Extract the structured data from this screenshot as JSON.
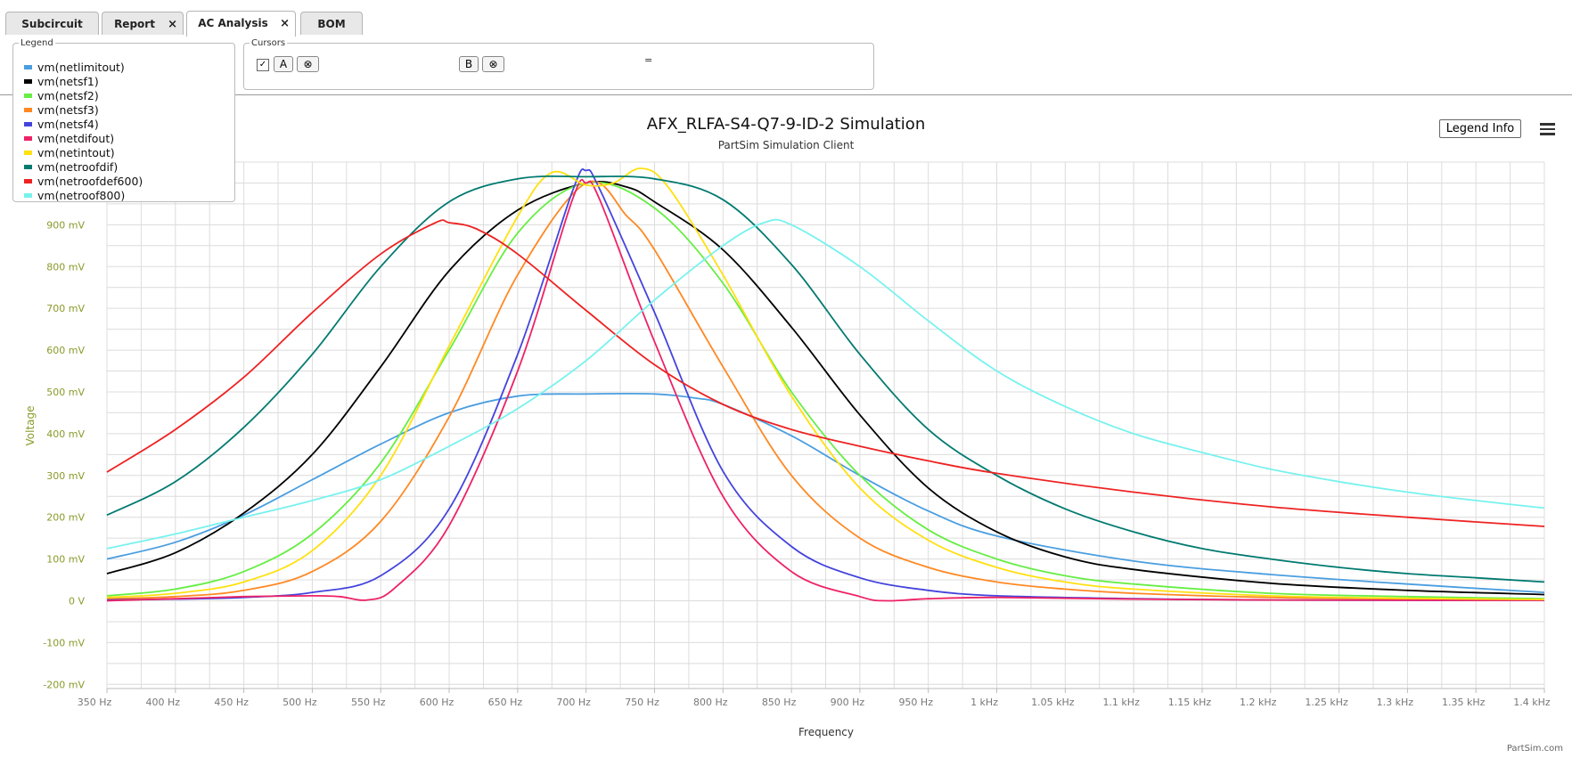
{
  "tabs": [
    {
      "label": "Subcircuit",
      "closable": false,
      "active": false
    },
    {
      "label": "Report",
      "closable": true,
      "active": false
    },
    {
      "label": "AC Analysis",
      "closable": true,
      "active": true
    },
    {
      "label": "BOM",
      "closable": false,
      "active": false
    }
  ],
  "legend_panel": {
    "label": "Legend"
  },
  "cursors_panel": {
    "label": "Cursors",
    "button_a": "A",
    "button_b": "B",
    "equals": "="
  },
  "legend_info_label": "Legend Info",
  "credit": "PartSim.com",
  "chart_data": {
    "type": "line",
    "title": "AFX_RLFA-S4-Q7-9-ID-2 Simulation",
    "subtitle": "PartSim Simulation Client",
    "xlabel": "Frequency",
    "ylabel": "Voltage",
    "xlim": [
      350,
      1400
    ],
    "ylim": [
      -210,
      1050
    ],
    "grid": true,
    "legend_placement": "top-left",
    "x_ticks": [
      350,
      400,
      450,
      500,
      550,
      600,
      650,
      700,
      750,
      800,
      850,
      900,
      950,
      1000,
      1050,
      1100,
      1150,
      1200,
      1250,
      1300,
      1350,
      1400
    ],
    "x_tick_labels": [
      "350 Hz",
      "400 Hz",
      "450 Hz",
      "500 Hz",
      "550 Hz",
      "600 Hz",
      "650 Hz",
      "700 Hz",
      "750 Hz",
      "800 Hz",
      "850 Hz",
      "900 Hz",
      "950 Hz",
      "1 kHz",
      "1.05 kHz",
      "1.1 kHz",
      "1.15 kHz",
      "1.2 kHz",
      "1.25 kHz",
      "1.3 kHz",
      "1.35 kHz",
      "1.4 kHz"
    ],
    "y_ticks": [
      -200,
      -100,
      0,
      100,
      200,
      300,
      400,
      500,
      600,
      700,
      800,
      900
    ],
    "y_tick_labels": [
      "-200 mV",
      "-100 mV",
      "0 V",
      "100 mV",
      "200 mV",
      "300 mV",
      "400 mV",
      "500 mV",
      "600 mV",
      "700 mV",
      "800 mV",
      "900 mV"
    ],
    "series": [
      {
        "name": "vm(netlimitout)",
        "color": "#4a9ee0",
        "points": [
          [
            350,
            100
          ],
          [
            400,
            140
          ],
          [
            450,
            205
          ],
          [
            500,
            290
          ],
          [
            550,
            375
          ],
          [
            600,
            450
          ],
          [
            650,
            490
          ],
          [
            700,
            495
          ],
          [
            750,
            495
          ],
          [
            780,
            485
          ],
          [
            800,
            470
          ],
          [
            850,
            395
          ],
          [
            900,
            300
          ],
          [
            950,
            215
          ],
          [
            1000,
            155
          ],
          [
            1100,
            95
          ],
          [
            1200,
            63
          ],
          [
            1300,
            40
          ],
          [
            1400,
            20
          ]
        ]
      },
      {
        "name": "vm(netsf1)",
        "color": "#000000",
        "points": [
          [
            350,
            65
          ],
          [
            400,
            115
          ],
          [
            450,
            210
          ],
          [
            500,
            350
          ],
          [
            550,
            560
          ],
          [
            600,
            790
          ],
          [
            650,
            935
          ],
          [
            700,
            1000
          ],
          [
            730,
            990
          ],
          [
            750,
            955
          ],
          [
            800,
            840
          ],
          [
            850,
            655
          ],
          [
            900,
            445
          ],
          [
            950,
            270
          ],
          [
            1000,
            165
          ],
          [
            1050,
            105
          ],
          [
            1100,
            75
          ],
          [
            1200,
            42
          ],
          [
            1300,
            25
          ],
          [
            1400,
            15
          ]
        ]
      },
      {
        "name": "vm(netsf2)",
        "color": "#66ee44",
        "points": [
          [
            350,
            12
          ],
          [
            400,
            28
          ],
          [
            450,
            70
          ],
          [
            500,
            160
          ],
          [
            550,
            330
          ],
          [
            600,
            600
          ],
          [
            650,
            880
          ],
          [
            700,
            1000
          ],
          [
            750,
            940
          ],
          [
            800,
            760
          ],
          [
            850,
            500
          ],
          [
            900,
            300
          ],
          [
            950,
            170
          ],
          [
            1000,
            100
          ],
          [
            1050,
            60
          ],
          [
            1100,
            40
          ],
          [
            1200,
            18
          ],
          [
            1300,
            10
          ],
          [
            1400,
            5
          ]
        ]
      },
      {
        "name": "vm(netsf3)",
        "color": "#ff8822",
        "points": [
          [
            350,
            5
          ],
          [
            400,
            10
          ],
          [
            450,
            25
          ],
          [
            500,
            70
          ],
          [
            550,
            190
          ],
          [
            600,
            440
          ],
          [
            650,
            780
          ],
          [
            700,
            1000
          ],
          [
            730,
            920
          ],
          [
            750,
            840
          ],
          [
            800,
            560
          ],
          [
            850,
            300
          ],
          [
            900,
            150
          ],
          [
            950,
            80
          ],
          [
            1000,
            45
          ],
          [
            1050,
            28
          ],
          [
            1100,
            18
          ],
          [
            1200,
            8
          ],
          [
            1300,
            5
          ],
          [
            1400,
            3
          ]
        ]
      },
      {
        "name": "vm(netsf4)",
        "color": "#4444dd",
        "points": [
          [
            350,
            2
          ],
          [
            400,
            4
          ],
          [
            450,
            8
          ],
          [
            500,
            20
          ],
          [
            550,
            60
          ],
          [
            600,
            220
          ],
          [
            650,
            590
          ],
          [
            690,
            980
          ],
          [
            700,
            1030
          ],
          [
            710,
            985
          ],
          [
            750,
            690
          ],
          [
            800,
            310
          ],
          [
            850,
            130
          ],
          [
            900,
            55
          ],
          [
            950,
            25
          ],
          [
            1000,
            12
          ],
          [
            1100,
            5
          ],
          [
            1200,
            2
          ],
          [
            1400,
            1
          ]
        ]
      },
      {
        "name": "vm(netdifout)",
        "color": "#ee2266",
        "points": [
          [
            350,
            0
          ],
          [
            400,
            5
          ],
          [
            450,
            10
          ],
          [
            500,
            12
          ],
          [
            520,
            10
          ],
          [
            540,
            2
          ],
          [
            560,
            30
          ],
          [
            600,
            180
          ],
          [
            650,
            550
          ],
          [
            690,
            960
          ],
          [
            700,
            1000
          ],
          [
            710,
            960
          ],
          [
            750,
            620
          ],
          [
            800,
            250
          ],
          [
            850,
            70
          ],
          [
            900,
            10
          ],
          [
            920,
            0
          ],
          [
            950,
            5
          ],
          [
            1000,
            8
          ],
          [
            1100,
            4
          ],
          [
            1200,
            2
          ],
          [
            1400,
            1
          ]
        ]
      },
      {
        "name": "vm(netintout)",
        "color": "#ffe010",
        "points": [
          [
            350,
            8
          ],
          [
            400,
            18
          ],
          [
            450,
            45
          ],
          [
            500,
            120
          ],
          [
            550,
            300
          ],
          [
            600,
            610
          ],
          [
            650,
            920
          ],
          [
            675,
            1025
          ],
          [
            700,
            995
          ],
          [
            720,
            1000
          ],
          [
            740,
            1035
          ],
          [
            760,
            990
          ],
          [
            800,
            780
          ],
          [
            850,
            490
          ],
          [
            900,
            270
          ],
          [
            950,
            145
          ],
          [
            1000,
            80
          ],
          [
            1050,
            45
          ],
          [
            1100,
            28
          ],
          [
            1200,
            12
          ],
          [
            1300,
            6
          ],
          [
            1400,
            3
          ]
        ]
      },
      {
        "name": "vm(netroofdif)",
        "color": "#007a70",
        "points": [
          [
            350,
            205
          ],
          [
            400,
            285
          ],
          [
            450,
            415
          ],
          [
            500,
            590
          ],
          [
            550,
            800
          ],
          [
            600,
            955
          ],
          [
            650,
            1010
          ],
          [
            700,
            1015
          ],
          [
            750,
            1010
          ],
          [
            800,
            960
          ],
          [
            850,
            805
          ],
          [
            900,
            590
          ],
          [
            950,
            410
          ],
          [
            1000,
            300
          ],
          [
            1050,
            220
          ],
          [
            1100,
            165
          ],
          [
            1150,
            125
          ],
          [
            1200,
            100
          ],
          [
            1250,
            80
          ],
          [
            1300,
            65
          ],
          [
            1350,
            55
          ],
          [
            1400,
            45
          ]
        ]
      },
      {
        "name": "vm(netroofdef600)",
        "color": "#ee2222",
        "points": [
          [
            350,
            308
          ],
          [
            400,
            410
          ],
          [
            450,
            535
          ],
          [
            500,
            690
          ],
          [
            550,
            830
          ],
          [
            590,
            905
          ],
          [
            600,
            905
          ],
          [
            620,
            890
          ],
          [
            650,
            830
          ],
          [
            700,
            695
          ],
          [
            750,
            565
          ],
          [
            800,
            470
          ],
          [
            850,
            410
          ],
          [
            900,
            370
          ],
          [
            950,
            335
          ],
          [
            1000,
            305
          ],
          [
            1100,
            260
          ],
          [
            1200,
            225
          ],
          [
            1300,
            200
          ],
          [
            1400,
            178
          ]
        ]
      },
      {
        "name": "vm(netroof800)",
        "color": "#77f2ee",
        "points": [
          [
            350,
            125
          ],
          [
            400,
            160
          ],
          [
            450,
            200
          ],
          [
            500,
            240
          ],
          [
            550,
            290
          ],
          [
            600,
            370
          ],
          [
            650,
            460
          ],
          [
            700,
            575
          ],
          [
            750,
            720
          ],
          [
            800,
            850
          ],
          [
            830,
            905
          ],
          [
            850,
            900
          ],
          [
            900,
            800
          ],
          [
            950,
            670
          ],
          [
            1000,
            550
          ],
          [
            1050,
            465
          ],
          [
            1100,
            400
          ],
          [
            1150,
            355
          ],
          [
            1200,
            315
          ],
          [
            1250,
            285
          ],
          [
            1300,
            260
          ],
          [
            1350,
            240
          ],
          [
            1400,
            222
          ]
        ]
      }
    ]
  }
}
